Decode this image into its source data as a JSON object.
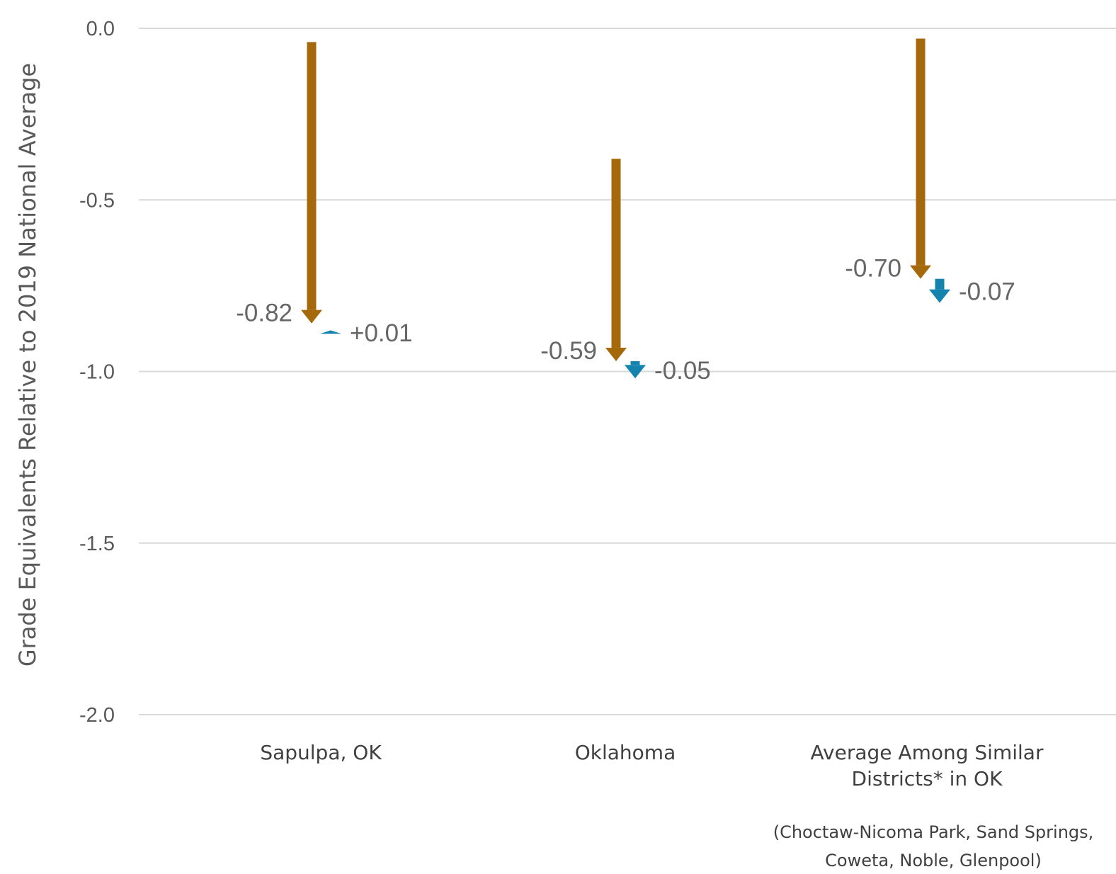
{
  "chart_data": {
    "type": "arrow",
    "ylabel": "Grade Equivalents Relative to 2019 National Average",
    "ylim": [
      -2.0,
      0.0
    ],
    "yticks": [
      "0.0",
      "-0.5",
      "-1.0",
      "-1.5",
      "-2.0"
    ],
    "grid": true,
    "colors": {
      "first_change": "#A5680A",
      "second_change": "#1483AE"
    },
    "categories": [
      {
        "label_lines": [
          "Sapulpa, OK"
        ],
        "note_lines": []
      },
      {
        "label_lines": [
          "Oklahoma"
        ],
        "note_lines": []
      },
      {
        "label_lines": [
          "Average Among Similar",
          "Districts* in OK"
        ],
        "note_lines": [
          "(Choctaw-Nicoma Park, Sand Springs,",
          "Coweta, Noble, Glenpool)"
        ]
      }
    ],
    "series": [
      {
        "start": [
          -0.04,
          -0.38,
          -0.03
        ],
        "end": [
          -0.86,
          -0.97,
          -0.73
        ],
        "values": [
          -0.82,
          -0.59,
          -0.7
        ],
        "labels": [
          "-0.82",
          "-0.59",
          "-0.70"
        ]
      },
      {
        "start": [
          -0.89,
          -0.97,
          -0.73
        ],
        "end": [
          -0.88,
          -1.02,
          -0.8
        ],
        "values": [
          0.01,
          -0.05,
          -0.07
        ],
        "labels": [
          "+0.01",
          "-0.05",
          "-0.07"
        ]
      }
    ]
  }
}
